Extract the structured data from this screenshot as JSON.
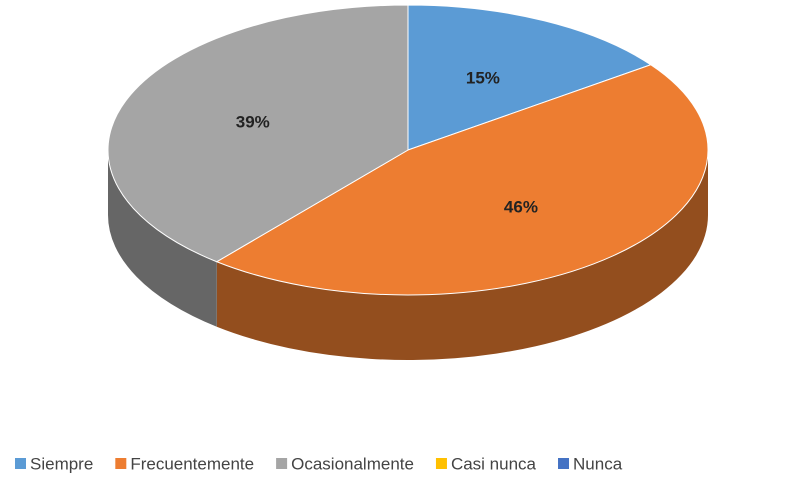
{
  "chart_data": {
    "type": "pie",
    "three_d": true,
    "categories": [
      "Siempre",
      "Frecuentemente",
      "Ocasionalmente",
      "Casi nunca",
      "Nunca"
    ],
    "values": [
      15,
      46,
      39,
      0,
      0
    ],
    "value_labels": [
      "15%",
      "46%",
      "39%",
      null,
      null
    ],
    "colors": [
      "#5b9bd5",
      "#ed7d31",
      "#a5a5a5",
      "#ffc000",
      "#4472c4"
    ],
    "legend": "bottom"
  }
}
